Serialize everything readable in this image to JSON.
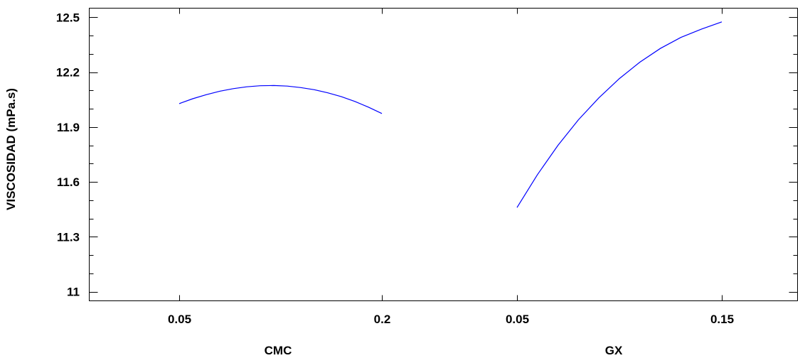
{
  "chart_data": {
    "type": "line",
    "title": "",
    "ylabel": "VISCOSIDAD (mPa.s)",
    "ylim": [
      10.95,
      12.55
    ],
    "yticks": [
      11,
      11.3,
      11.6,
      11.9,
      12.2,
      12.5
    ],
    "yticks_labels": [
      "11",
      "11.3",
      "11.6",
      "11.9",
      "12.2",
      "12.5"
    ],
    "y_minor_tick_step": 0.1,
    "grid": false,
    "line_color": "#0000ff",
    "panels": [
      {
        "xlabel": "CMC",
        "xlim": [
          0.05,
          0.2
        ],
        "xticks": [
          0.05,
          0.2
        ],
        "xticks_labels": [
          "0.05",
          "0.2"
        ],
        "series": [
          {
            "x": [
              0.05,
              0.06,
              0.07,
              0.08,
              0.09,
              0.1,
              0.11,
              0.12,
              0.13,
              0.14,
              0.15,
              0.16,
              0.17,
              0.18,
              0.19,
              0.2
            ],
            "y": [
              12.028,
              12.055,
              12.077,
              12.096,
              12.11,
              12.12,
              12.126,
              12.127,
              12.124,
              12.116,
              12.104,
              12.087,
              12.066,
              12.04,
              12.009,
              11.974
            ]
          }
        ]
      },
      {
        "xlabel": "GX",
        "xlim": [
          0.05,
          0.15
        ],
        "xticks": [
          0.05,
          0.15
        ],
        "xticks_labels": [
          "0.05",
          "0.15"
        ],
        "series": [
          {
            "x": [
              0.05,
              0.06,
              0.07,
              0.08,
              0.09,
              0.1,
              0.11,
              0.12,
              0.13,
              0.14,
              0.15
            ],
            "y": [
              11.46,
              11.64,
              11.8,
              11.94,
              12.06,
              12.165,
              12.255,
              12.33,
              12.39,
              12.435,
              12.475
            ]
          }
        ]
      }
    ]
  }
}
